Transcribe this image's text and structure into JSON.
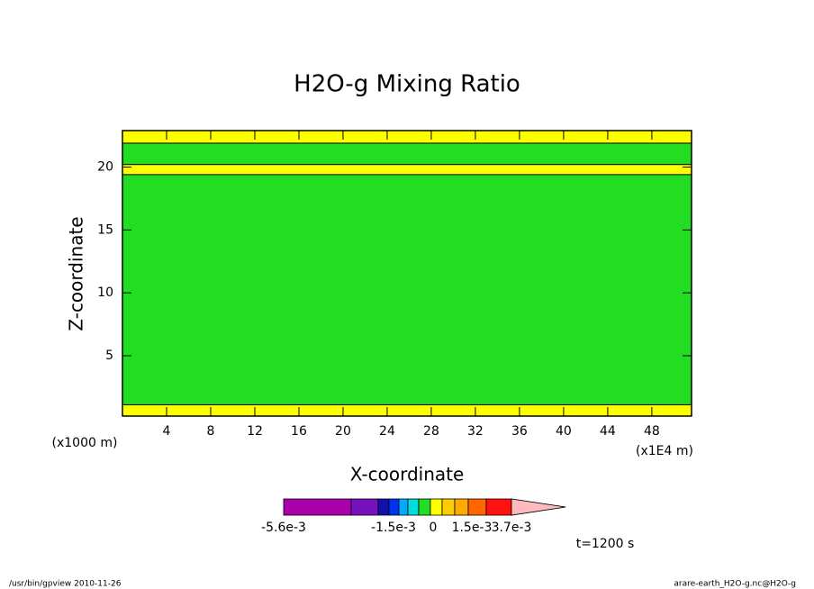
{
  "chart_data": {
    "type": "contour",
    "title": "H2O-g Mixing Ratio",
    "x_label": "X-coordinate",
    "y_label": "Z-coordinate",
    "x_unit": "(x1E4 m)",
    "y_unit": "(x1000 m)",
    "xlim": [
      0,
      51.6
    ],
    "ylim": [
      0.2,
      22.9
    ],
    "xticks": [
      4,
      8,
      12,
      16,
      20,
      24,
      28,
      32,
      36,
      40,
      44,
      48
    ],
    "yticks": [
      5,
      10,
      15,
      20
    ],
    "background_color": "#22dd22",
    "bands": [
      {
        "y": [
          21.9,
          22.9
        ],
        "color": "#ffff00"
      },
      {
        "y": [
          19.4,
          20.2
        ],
        "color": "#ffff00"
      },
      {
        "y": [
          0.2,
          1.1
        ],
        "color": "#ffff00"
      }
    ],
    "colorbar": {
      "colors": [
        "#aa00aa",
        "#7711bb",
        "#1111aa",
        "#0033ee",
        "#00aaff",
        "#00dddd",
        "#22dd22",
        "#ffff00",
        "#ffcc00",
        "#ffaa00",
        "#ff6600",
        "#ff1111",
        "#ff8888",
        "#ffbbbb"
      ],
      "ticks": [
        {
          "value": -0.0056,
          "label": "-5.6e-3"
        },
        {
          "value": -0.0015,
          "label": "-1.5e-3"
        },
        0,
        {
          "value": 0.0015,
          "label": "1.5e-3"
        },
        {
          "value": 0.0037,
          "label": "3.7e-3"
        }
      ]
    },
    "time_label": "t=1200 s",
    "footer_left": "/usr/bin/gpview  2010-11-26",
    "footer_right": "arare-earth_H2O-g.nc@H2O-g"
  }
}
